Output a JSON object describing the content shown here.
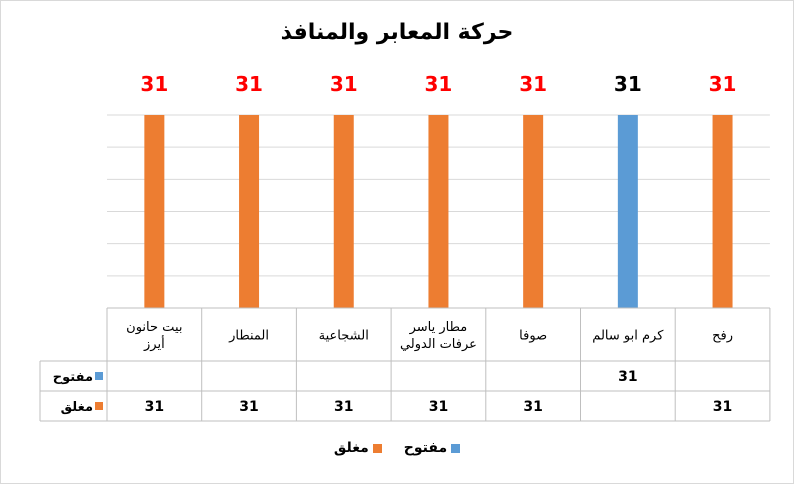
{
  "chart_data": {
    "type": "bar",
    "title": "حركة المعابر والمنافذ",
    "categories": [
      "بيت حانون أيرز",
      "المنطار",
      "الشجاعية",
      "مطار ياسر عرفات الدولي",
      "صوفا",
      "كرم ابو سالم",
      "رفح"
    ],
    "category_lines": [
      [
        "بيت حانون",
        "أيرز"
      ],
      [
        "المنطار"
      ],
      [
        "الشجاعية"
      ],
      [
        "مطار ياسر",
        "عرفات الدولي"
      ],
      [
        "صوفا"
      ],
      [
        "كرم ابو سالم"
      ],
      [
        "رفح"
      ]
    ],
    "series": [
      {
        "name": "مفتوح",
        "color": "#5B9BD5",
        "values": [
          null,
          null,
          null,
          null,
          null,
          31,
          null
        ]
      },
      {
        "name": "مغلق",
        "color": "#ED7D31",
        "values": [
          31,
          31,
          31,
          31,
          31,
          null,
          31
        ]
      }
    ],
    "data_labels": [
      "31",
      "31",
      "31",
      "31",
      "31",
      "31",
      "31"
    ],
    "data_label_colors": [
      "#FF0000",
      "#FF0000",
      "#FF0000",
      "#FF0000",
      "#FF0000",
      "#000000",
      "#FF0000"
    ],
    "ylim": [
      0,
      31
    ],
    "grid": true,
    "data_table": true,
    "legend_position": "bottom"
  }
}
